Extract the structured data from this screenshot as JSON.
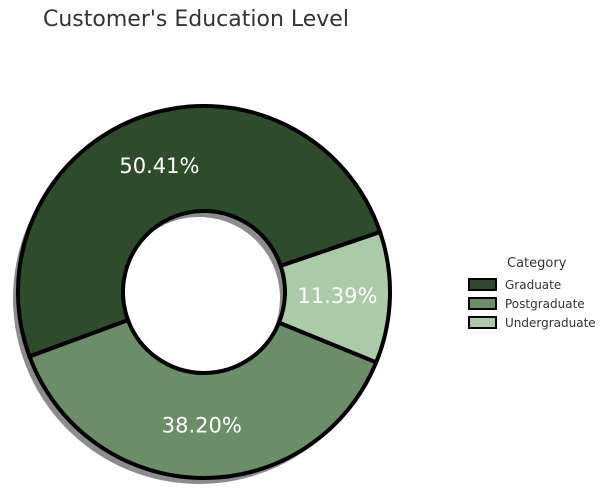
{
  "chart_data": {
    "type": "pie",
    "variant": "donut",
    "title": "Customer's Education Level",
    "categories": [
      "Graduate",
      "Postgraduate",
      "Undergraduate"
    ],
    "values": [
      50.41,
      38.2,
      11.39
    ],
    "data_labels": [
      "50.41%",
      "38.20%",
      "11.39%"
    ],
    "colors": [
      "#2e4c2b",
      "#6b8e68",
      "#abcaa7"
    ],
    "edge_color": "#000000",
    "label_color": "#ffffff",
    "shadow": true,
    "legend": {
      "title": "Category",
      "placement": "center-right"
    }
  }
}
